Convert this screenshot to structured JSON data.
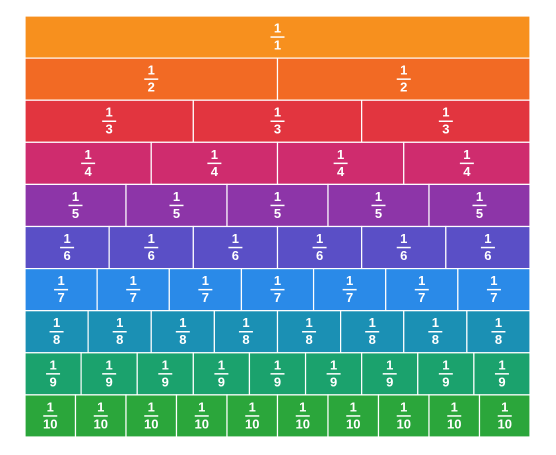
{
  "rows": [
    {
      "color": "#f7901e",
      "cells": [
        {
          "numerator": "1",
          "denominator": "1"
        }
      ]
    },
    {
      "color": "#f26a24",
      "cells": [
        {
          "numerator": "1",
          "denominator": "2"
        },
        {
          "numerator": "1",
          "denominator": "2"
        }
      ]
    },
    {
      "color": "#e2353f",
      "cells": [
        {
          "numerator": "1",
          "denominator": "3"
        },
        {
          "numerator": "1",
          "denominator": "3"
        },
        {
          "numerator": "1",
          "denominator": "3"
        }
      ]
    },
    {
      "color": "#cf2c6e",
      "cells": [
        {
          "numerator": "1",
          "denominator": "4"
        },
        {
          "numerator": "1",
          "denominator": "4"
        },
        {
          "numerator": "1",
          "denominator": "4"
        },
        {
          "numerator": "1",
          "denominator": "4"
        }
      ]
    },
    {
      "color": "#8d35a8",
      "cells": [
        {
          "numerator": "1",
          "denominator": "5"
        },
        {
          "numerator": "1",
          "denominator": "5"
        },
        {
          "numerator": "1",
          "denominator": "5"
        },
        {
          "numerator": "1",
          "denominator": "5"
        },
        {
          "numerator": "1",
          "denominator": "5"
        }
      ]
    },
    {
      "color": "#5a4fc6",
      "cells": [
        {
          "numerator": "1",
          "denominator": "6"
        },
        {
          "numerator": "1",
          "denominator": "6"
        },
        {
          "numerator": "1",
          "denominator": "6"
        },
        {
          "numerator": "1",
          "denominator": "6"
        },
        {
          "numerator": "1",
          "denominator": "6"
        },
        {
          "numerator": "1",
          "denominator": "6"
        }
      ]
    },
    {
      "color": "#2a8ae8",
      "cells": [
        {
          "numerator": "1",
          "denominator": "7"
        },
        {
          "numerator": "1",
          "denominator": "7"
        },
        {
          "numerator": "1",
          "denominator": "7"
        },
        {
          "numerator": "1",
          "denominator": "7"
        },
        {
          "numerator": "1",
          "denominator": "7"
        },
        {
          "numerator": "1",
          "denominator": "7"
        },
        {
          "numerator": "1",
          "denominator": "7"
        }
      ]
    },
    {
      "color": "#1b90b4",
      "cells": [
        {
          "numerator": "1",
          "denominator": "8"
        },
        {
          "numerator": "1",
          "denominator": "8"
        },
        {
          "numerator": "1",
          "denominator": "8"
        },
        {
          "numerator": "1",
          "denominator": "8"
        },
        {
          "numerator": "1",
          "denominator": "8"
        },
        {
          "numerator": "1",
          "denominator": "8"
        },
        {
          "numerator": "1",
          "denominator": "8"
        },
        {
          "numerator": "1",
          "denominator": "8"
        }
      ]
    },
    {
      "color": "#1ba26d",
      "cells": [
        {
          "numerator": "1",
          "denominator": "9"
        },
        {
          "numerator": "1",
          "denominator": "9"
        },
        {
          "numerator": "1",
          "denominator": "9"
        },
        {
          "numerator": "1",
          "denominator": "9"
        },
        {
          "numerator": "1",
          "denominator": "9"
        },
        {
          "numerator": "1",
          "denominator": "9"
        },
        {
          "numerator": "1",
          "denominator": "9"
        },
        {
          "numerator": "1",
          "denominator": "9"
        },
        {
          "numerator": "1",
          "denominator": "9"
        }
      ]
    },
    {
      "color": "#2ba63b",
      "cells": [
        {
          "numerator": "1",
          "denominator": "10"
        },
        {
          "numerator": "1",
          "denominator": "10"
        },
        {
          "numerator": "1",
          "denominator": "10"
        },
        {
          "numerator": "1",
          "denominator": "10"
        },
        {
          "numerator": "1",
          "denominator": "10"
        },
        {
          "numerator": "1",
          "denominator": "10"
        },
        {
          "numerator": "1",
          "denominator": "10"
        },
        {
          "numerator": "1",
          "denominator": "10"
        },
        {
          "numerator": "1",
          "denominator": "10"
        },
        {
          "numerator": "1",
          "denominator": "10"
        }
      ]
    }
  ]
}
